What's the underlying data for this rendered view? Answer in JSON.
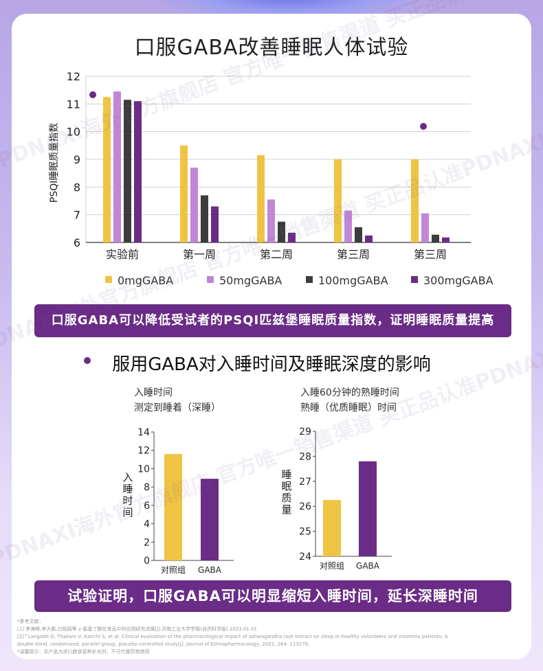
{
  "watermark_text": "PDNAXI海外官方旗舰店 官方唯一销售渠道 买正品认准PDNAXI",
  "top_chart": {
    "title": "口服GABA改善睡眠人体试验",
    "ylabel": "PSQI睡眠质量指数",
    "banner": "口服GABA可以降低受试者的PSQI匹兹堡睡眠质量指数，证明睡眠质量提高"
  },
  "section2": {
    "title": "服用GABA对入睡时间及睡眠深度的影响",
    "banner": "试验证明，口服GABA可以明显缩短入睡时间，延长深睡时间",
    "left_caption_1": "入睡时间",
    "left_caption_2": "测定到睡着（深睡）",
    "right_caption_1": "入睡60分钟的熟睡时间",
    "right_caption_2": "熟睡（优质睡眠）时间"
  },
  "references": {
    "header": "*参考文献：",
    "ref1": "[1] 李海峰,李大鹏,白晓娟等.γ-氨基丁酸在食品中的应用研究进展[J].河南工业大学学报(自然科学版).2023.01.01",
    "ref2": "[2]^Langade D, Thakare V, Kanchi S, et al. Clinical evaluation of the pharmacological impact of ashwagandha root extract on sleep in healthy volunteers and insomnia patients: A",
    "ref3": "double-blind, randomized, parallel-group, placebo-controlled study[J]. Journal of Ethnopharmacology, 2021, 264: 113276.",
    "note": "*温馨提示：本产品为进口膳食营养补充剂，不可代替药物使用"
  },
  "chart_data": [
    {
      "type": "bar",
      "title": "口服GABA改善睡眠人体试验",
      "ylabel": "PSQI睡眠质量指数",
      "xlabel": "",
      "categories": [
        "实验前",
        "第一周",
        "第二周",
        "第三周",
        "第三周"
      ],
      "ylim": [
        6,
        12
      ],
      "yticks": [
        6,
        7,
        8,
        9,
        10,
        11,
        12
      ],
      "grid": true,
      "legend_position": "bottom",
      "series": [
        {
          "name": "0mgGABA",
          "color": "#f0c443",
          "values": [
            11.25,
            9.5,
            9.15,
            9.0,
            9.0
          ]
        },
        {
          "name": "50mgGABA",
          "color": "#c286d8",
          "values": [
            11.45,
            8.7,
            7.55,
            7.15,
            7.05
          ]
        },
        {
          "name": "100mgGABA",
          "color": "#3c3c3c",
          "values": [
            11.15,
            7.7,
            6.75,
            6.55,
            6.28
          ]
        },
        {
          "name": "300mgGABA",
          "color": "#6a2c86",
          "values": [
            11.1,
            7.3,
            6.35,
            6.25,
            6.18
          ]
        }
      ]
    },
    {
      "type": "bar",
      "title": "",
      "ylabel": "入睡时间",
      "xlabel": "",
      "categories": [
        "对照组",
        "GABA"
      ],
      "values": [
        11.6,
        8.9
      ],
      "colors": [
        "#f0c443",
        "#6a2c86"
      ],
      "ylim": [
        0,
        14
      ],
      "yticks": [
        0,
        2,
        4,
        6,
        8,
        10,
        12,
        14
      ],
      "grid": false
    },
    {
      "type": "bar",
      "title": "",
      "ylabel": "睡眠质量",
      "xlabel": "",
      "categories": [
        "对照组",
        "GABA"
      ],
      "values": [
        26.25,
        27.8
      ],
      "colors": [
        "#f0c443",
        "#6a2c86"
      ],
      "ylim": [
        24,
        29
      ],
      "yticks": [
        24,
        25,
        26,
        27,
        28,
        29
      ],
      "grid": false
    }
  ]
}
